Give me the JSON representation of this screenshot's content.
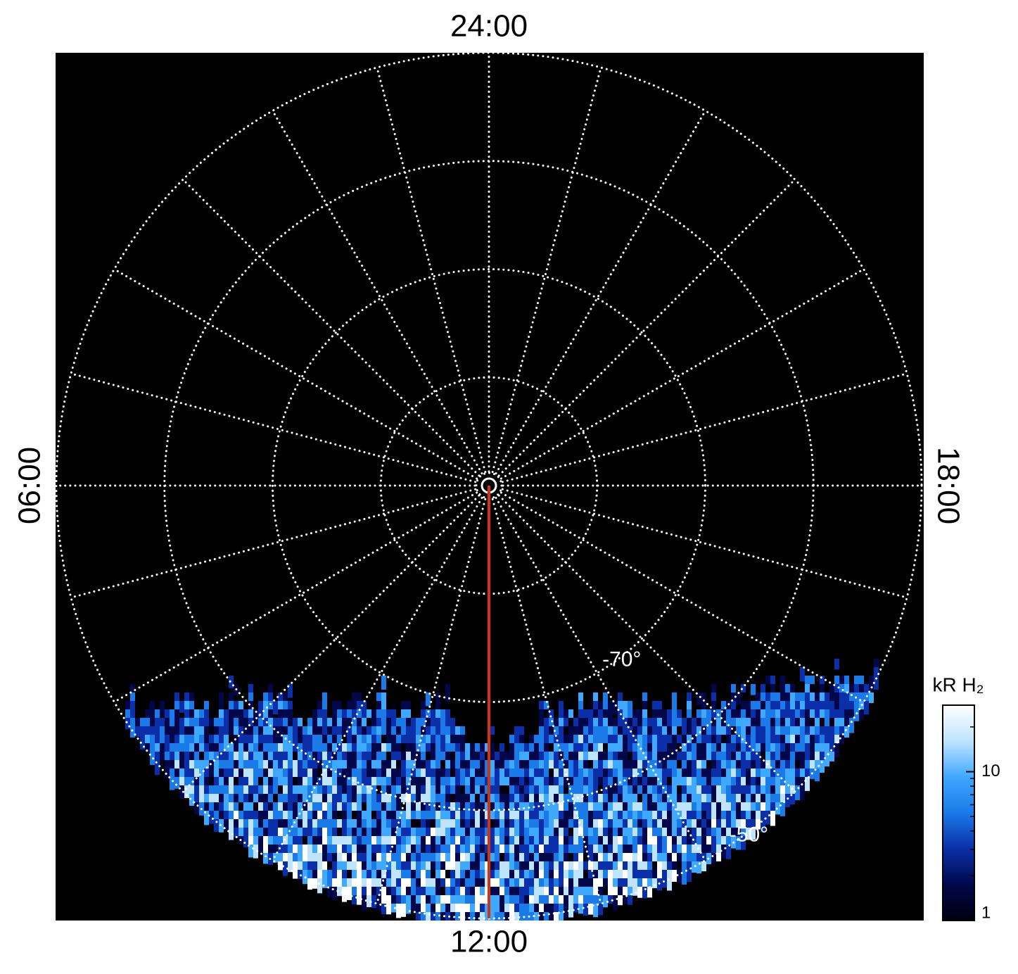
{
  "chart_data": {
    "type": "polar",
    "center_lat": -90,
    "rlim": [
      -90,
      -50
    ],
    "rgrid": [
      -80,
      -70,
      -60,
      -50
    ],
    "rticks": [
      {
        "value": -70,
        "label": "-70°"
      },
      {
        "value": -50,
        "label": "-50°"
      }
    ],
    "lt_grid": [
      0,
      1,
      2,
      3,
      4,
      5,
      6,
      7,
      8,
      9,
      10,
      11,
      12,
      13,
      14,
      15,
      16,
      17,
      18,
      19,
      20,
      21,
      22,
      23
    ],
    "lt_ticks": [
      {
        "value": 24,
        "label": "24:00"
      },
      {
        "value": 6,
        "label": "06:00"
      },
      {
        "value": 12,
        "label": "12:00"
      },
      {
        "value": 18,
        "label": "18:00"
      }
    ],
    "meridian_line": {
      "lt": 12,
      "color": "#d2330f"
    },
    "grid_color": "#ffffff",
    "background": "#000000",
    "colorbar": {
      "label": "kR H₂",
      "log": true,
      "lim": [
        1,
        28
      ],
      "ticks": [
        1,
        10
      ],
      "colors": [
        "#000010",
        "#00084a",
        "#0a2fa8",
        "#1a7ae8",
        "#3fa8ff",
        "#bfe4ff",
        "#ffffff"
      ]
    }
  }
}
